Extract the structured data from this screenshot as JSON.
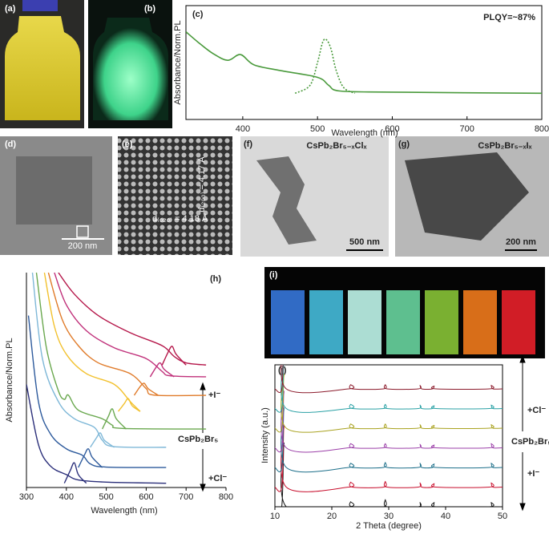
{
  "panels": {
    "a": "(a)",
    "b": "(b)",
    "d": "(d)",
    "e": "(e)",
    "f": "(f)",
    "g": "(g)",
    "i": "(i)"
  },
  "images": {
    "e_label": "d₍₀₂₀₎ = 4.18 Å",
    "e_label2": "d₍₂₀₀₎ = 4.17 Å",
    "d_scale": "200 nm",
    "f_title": "CsPb₂Br₅₋ₓClₓ",
    "f_scale": "500 nm",
    "g_title": "CsPb₂Br₅₋ₓIₓ",
    "g_scale": "200 nm"
  },
  "chart_data": [
    {
      "type": "line",
      "label": "(c)",
      "xlabel": "Wavelength (nm)",
      "ylabel": "Absorbance/Norm.PL",
      "annotations": [
        "PLQY=~87%"
      ],
      "xlim": [
        324,
        800
      ],
      "xticks": [
        400,
        500,
        600,
        700,
        800
      ],
      "ylim": [
        0,
        10
      ],
      "series": [
        {
          "color": "#4a9a3c",
          "style": "solid",
          "x": [
            324,
            340,
            360,
            380,
            397,
            415,
            450,
            500,
            515,
            530,
            600,
            800
          ],
          "values": [
            7.7,
            6.8,
            5.8,
            5.2,
            5.7,
            4.8,
            4.3,
            3.7,
            3.0,
            2.5,
            2.4,
            2.3
          ]
        },
        {
          "color": "#4a9a3c",
          "style": "dotted",
          "x": [
            470,
            490,
            500,
            507,
            512,
            518,
            525,
            535,
            550
          ],
          "values": [
            2.3,
            3.0,
            5.0,
            6.8,
            7.0,
            6.2,
            4.3,
            2.8,
            2.3
          ]
        }
      ]
    },
    {
      "type": "line",
      "label": "(h)",
      "xlabel": "Wavelength (nm)",
      "ylabel": "Absorbance/Norm.PL",
      "annotations": [
        "+I⁻",
        "CsPb₂Br₅",
        "+Cl⁻"
      ],
      "xlim": [
        300,
        800
      ],
      "xticks": [
        300,
        400,
        500,
        600,
        700,
        800
      ],
      "ylim": [
        0,
        10
      ],
      "series": [
        {
          "color": "#2b2f7a",
          "x": [
            300,
            330,
            360,
            400,
            430,
            500,
            650
          ],
          "values": [
            4.8,
            2,
            1,
            0.6,
            0.35,
            0.25,
            0.2
          ]
        },
        {
          "color": "#2b2f7a",
          "x": [
            395,
            410,
            420,
            430,
            450
          ],
          "values": [
            0.2,
            0.8,
            1.15,
            0.6,
            0.2
          ]
        },
        {
          "color": "#2d5a9c",
          "x": [
            305,
            330,
            360,
            400,
            440,
            460,
            500,
            650
          ],
          "values": [
            8,
            4,
            2.5,
            1.8,
            1.5,
            1.1,
            0.95,
            0.93
          ]
        },
        {
          "color": "#2d5a9c",
          "x": [
            430,
            445,
            455,
            465,
            490
          ],
          "values": [
            0.93,
            1.5,
            1.8,
            1.4,
            0.93
          ]
        },
        {
          "color": "#7fb8d8",
          "x": [
            315,
            340,
            380,
            420,
            470,
            490,
            520,
            650
          ],
          "values": [
            10,
            6,
            4,
            3.2,
            2.8,
            2.2,
            1.9,
            1.87
          ]
        },
        {
          "color": "#7fb8d8",
          "x": [
            460,
            475,
            485,
            495,
            520
          ],
          "values": [
            1.87,
            2.3,
            2.54,
            2.2,
            1.87
          ]
        },
        {
          "color": "#6aa84f",
          "x": [
            325,
            350,
            380,
            395,
            405,
            430,
            490,
            515,
            540,
            750
          ],
          "values": [
            10,
            6.5,
            4.5,
            4.1,
            4.3,
            3.6,
            3.2,
            2.9,
            2.75,
            2.72
          ]
        },
        {
          "color": "#6aa84f",
          "x": [
            490,
            505,
            515,
            525,
            550
          ],
          "values": [
            2.72,
            3.3,
            3.66,
            3.2,
            2.72
          ]
        },
        {
          "color": "#f2c12e",
          "x": [
            345,
            370,
            400,
            450,
            520,
            560,
            585
          ],
          "values": [
            10,
            7.5,
            6.2,
            5.3,
            4.8,
            4,
            3.54
          ]
        },
        {
          "color": "#f2c12e",
          "x": [
            530,
            545,
            555,
            565,
            585
          ],
          "values": [
            3.54,
            3.9,
            4.14,
            3.8,
            3.54
          ]
        },
        {
          "color": "#e07b2a",
          "x": [
            355,
            390,
            430,
            480,
            560,
            600,
            620,
            750
          ],
          "values": [
            10,
            7.8,
            6.6,
            5.8,
            5.3,
            4.6,
            4.3,
            4.29
          ]
        },
        {
          "color": "#e07b2a",
          "x": [
            570,
            585,
            595,
            605,
            630
          ],
          "values": [
            4.29,
            4.7,
            4.85,
            4.6,
            4.29
          ]
        },
        {
          "color": "#c0307a",
          "x": [
            370,
            400,
            450,
            520,
            600,
            640,
            660,
            750
          ],
          "values": [
            10,
            8.5,
            7.3,
            6.5,
            6.0,
            5.4,
            5.2,
            5.15
          ]
        },
        {
          "color": "#c0307a",
          "x": [
            610,
            625,
            635,
            645,
            670
          ],
          "values": [
            5.15,
            5.6,
            5.8,
            5.5,
            5.15
          ]
        },
        {
          "color": "#b5174a",
          "x": [
            380,
            420,
            480,
            560,
            640,
            670,
            700,
            750
          ],
          "values": [
            10,
            9,
            8,
            7.2,
            6.6,
            6.1,
            5.8,
            5.7
          ]
        },
        {
          "color": "#b5174a",
          "x": [
            640,
            655,
            665,
            675,
            700
          ],
          "values": [
            5.7,
            6.3,
            6.57,
            6.2,
            5.7
          ]
        }
      ]
    },
    {
      "type": "line",
      "label": "(j)",
      "xlabel": "2 Theta (degree)",
      "ylabel": "Intensity (a.u.)",
      "annotations": [
        "+Cl⁻",
        "CsPb₂Br₅",
        "+I⁻"
      ],
      "xlim": [
        10,
        50
      ],
      "xticks": [
        10,
        20,
        30,
        40,
        50
      ],
      "ylim": [
        0,
        10
      ],
      "x": [
        10,
        11.2,
        11.6,
        12,
        23,
        23.3,
        23.6,
        29.1,
        29.4,
        29.7,
        35.2,
        35.5,
        35.8,
        37.7,
        38,
        38.3,
        47.7,
        48,
        48.3,
        50
      ],
      "series": [
        {
          "color": "#111111",
          "values": [
            0,
            0,
            4.5,
            0,
            0,
            0.35,
            0,
            0,
            0.5,
            0,
            0,
            0.3,
            0,
            0,
            0.3,
            0,
            0,
            0.3,
            0,
            0
          ]
        },
        {
          "color": "#c8102e",
          "values": [
            0,
            0,
            4.3,
            0,
            0,
            0.35,
            0,
            0,
            0.4,
            0,
            0,
            0.3,
            0,
            0,
            0.25,
            0,
            0,
            0.3,
            0,
            0
          ]
        },
        {
          "color": "#1d6f8a",
          "values": [
            0,
            0,
            4.2,
            0,
            0,
            0.3,
            0,
            0,
            0.35,
            0,
            0,
            0.3,
            0,
            0,
            0.25,
            0,
            0,
            0.3,
            0,
            0
          ]
        },
        {
          "color": "#9b3fa8",
          "values": [
            0,
            0,
            4.0,
            0,
            0,
            0.3,
            0,
            0,
            0.3,
            0,
            0,
            0.25,
            0,
            0,
            0.2,
            0,
            0,
            0.3,
            0,
            0
          ]
        },
        {
          "color": "#a9a21f",
          "values": [
            0,
            0,
            3.8,
            0,
            0,
            0.3,
            0,
            0,
            0.3,
            0,
            0,
            0.25,
            0,
            0,
            0.2,
            0,
            0,
            0.25,
            0,
            0
          ]
        },
        {
          "color": "#2aa1a5",
          "values": [
            0,
            0,
            3.6,
            0,
            0,
            0.3,
            0,
            0,
            0.3,
            0,
            0,
            0.25,
            0,
            0,
            0.2,
            0,
            0,
            0.25,
            0,
            0
          ]
        },
        {
          "color": "#8b1a2b",
          "values": [
            0,
            0,
            3.5,
            0,
            0,
            0.3,
            0,
            0,
            0.3,
            0,
            0,
            0.25,
            0,
            0,
            0.2,
            0,
            0,
            0.25,
            0,
            0
          ]
        }
      ]
    }
  ]
}
